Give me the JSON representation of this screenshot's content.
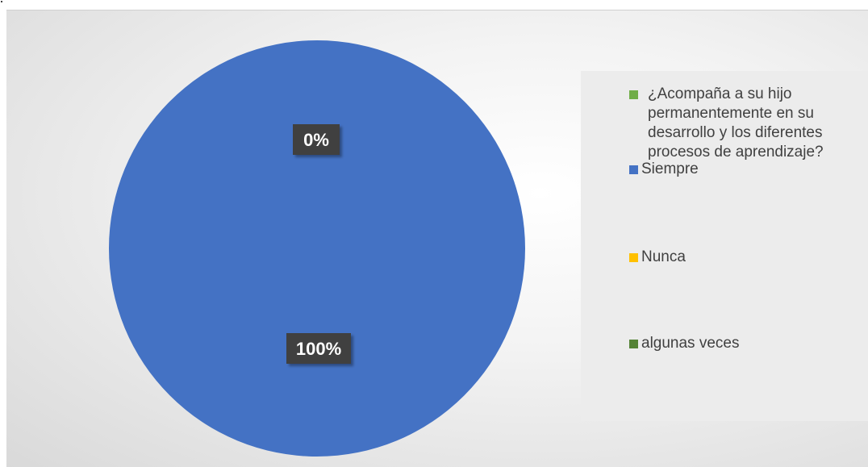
{
  "chart_data": {
    "type": "pie",
    "series": [
      {
        "name": "¿Acompaña a su hijo permanentemente en su desarrollo y los diferentes procesos de aprendizaje?",
        "values": [
          1,
          0,
          0
        ]
      }
    ],
    "categories": [
      "Siempre",
      "Nunca",
      "algunas veces"
    ],
    "data_labels": [
      "100%",
      "0%"
    ],
    "colors": {
      "series_swatch": "#70AD47",
      "Siempre": "#4472C4",
      "Nunca": "#FFC000",
      "algunas veces": "#548235",
      "label_bg": "#404040",
      "label_text": "#ffffff"
    },
    "legend_position": "right",
    "title": ""
  }
}
